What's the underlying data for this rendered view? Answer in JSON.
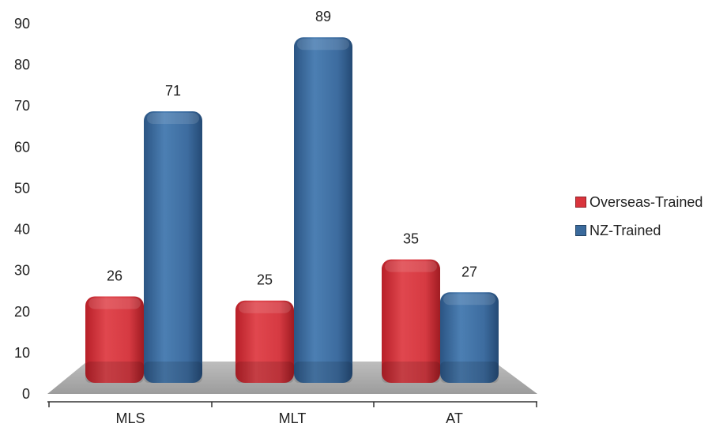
{
  "chart_data": {
    "type": "bar",
    "categories": [
      "MLS",
      "MLT",
      "AT"
    ],
    "series": [
      {
        "name": "Overseas-Trained",
        "values": [
          26,
          25,
          35
        ],
        "color": "#d9343c"
      },
      {
        "name": "NZ-Trained",
        "values": [
          71,
          89,
          27
        ],
        "color": "#3a6a9c"
      }
    ],
    "ylim": [
      0,
      90
    ],
    "yticks": [
      0,
      10,
      20,
      30,
      40,
      50,
      60,
      70,
      80,
      90
    ],
    "data_labels": true,
    "grid": false,
    "legend_position": "right",
    "style": "3d-rounded-bars"
  }
}
